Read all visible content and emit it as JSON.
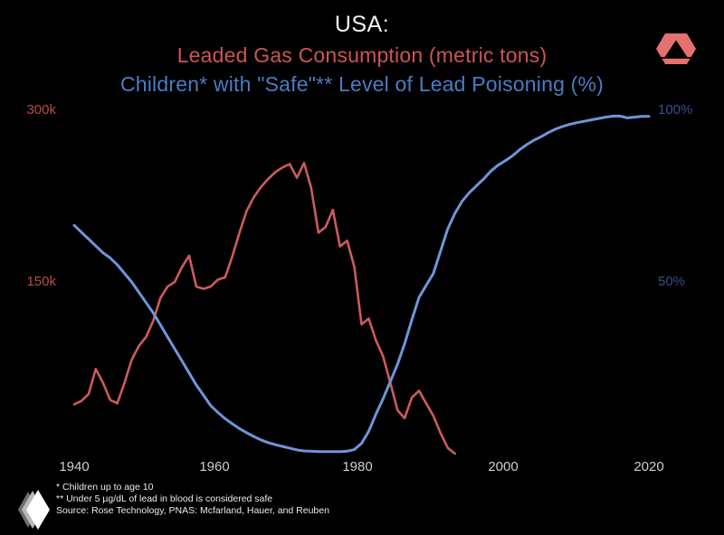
{
  "colors": {
    "background": "#000000",
    "title_text": "#f2f2f2",
    "gas_red_text": "#cd5456",
    "children_blue_text": "#4a7cc5",
    "left_tick_red": "#bf4a4c",
    "right_tick_blue": "#33518c",
    "x_tick_gray": "#cfcfcf",
    "footnote_gray": "#ececec",
    "logo_salmon": "#e57070",
    "logo_white": "#ffffff",
    "logo_gray_mid": "#b9b9b9",
    "logo_gray_dark": "#6e6e6e"
  },
  "footnotes": [
    "* Children up to age 10",
    "** Under 5 µg/dL of lead in blood is considered safe",
    "Source: Rose Technology, PNAS: Mcfarland, Hauer, and Reuben"
  ],
  "chart_data": {
    "type": "line",
    "title": "USA:",
    "grid": false,
    "legend_position": "color-coded subtitles act as legend",
    "x_axis": {
      "start": 1940,
      "end": 2020,
      "tick_labels": [
        "1940",
        "1960",
        "1980",
        "2000",
        "2020"
      ]
    },
    "left_axis": {
      "label": "Leaded Gas Consumption (metric tons)",
      "unit": "thousand metric tons",
      "max": 300,
      "min": 0,
      "tick_values": [
        300,
        150
      ],
      "tick_labels": [
        "300k",
        "150k"
      ]
    },
    "right_axis": {
      "label": "Children with \"Safe\" Level of Lead Poisoning",
      "unit": "%",
      "max": 100,
      "min": 0,
      "tick_values": [
        100,
        50
      ],
      "tick_labels": [
        "100%",
        "50%"
      ]
    },
    "series": [
      {
        "name": "Leaded Gas Consumption (metric tons)",
        "axis": "left",
        "color": "#cd5b5c",
        "stroke_width": 2.6,
        "start_year": 1940,
        "end_year": 1993,
        "values": [
          43,
          46,
          52,
          74,
          62,
          47,
          44,
          62,
          82,
          94,
          102,
          116,
          136,
          146,
          150,
          163,
          173,
          146,
          144,
          146,
          152,
          154,
          172,
          193,
          212,
          224,
          233,
          240,
          246,
          250,
          253,
          241,
          254,
          232,
          193,
          198,
          213,
          181,
          186,
          163,
          113,
          118,
          99,
          85,
          62,
          38,
          31,
          49,
          55,
          44,
          33,
          18,
          5,
          0
        ]
      },
      {
        "name": "Children* with \"Safe\"** Level of Lead Poisoning (%)",
        "axis": "right",
        "color": "#6d96d8",
        "stroke_width": 3,
        "start_year": 1940,
        "end_year": 2020,
        "values": [
          66.5,
          64.5,
          62.5,
          60.5,
          58.5,
          57,
          55,
          52.5,
          50,
          47,
          44,
          41,
          37.5,
          34,
          30.5,
          27,
          23.5,
          20,
          17,
          14,
          12,
          10.2,
          8.7,
          7.3,
          6.1,
          5,
          4,
          3.2,
          2.6,
          2.1,
          1.6,
          1.1,
          0.8,
          0.7,
          0.6,
          0.6,
          0.6,
          0.6,
          0.7,
          1.2,
          3,
          6.5,
          11.5,
          16,
          21,
          26,
          32,
          39,
          45.5,
          49,
          52.5,
          59,
          65.5,
          70,
          73.5,
          76,
          78,
          80,
          82.3,
          84,
          85.3,
          86.7,
          88.5,
          90,
          91.3,
          92.3,
          93.5,
          94.5,
          95.3,
          95.9,
          96.4,
          96.8,
          97.2,
          97.6,
          98,
          98.3,
          98.3,
          97.8,
          98,
          98.2,
          98.2
        ]
      }
    ]
  }
}
